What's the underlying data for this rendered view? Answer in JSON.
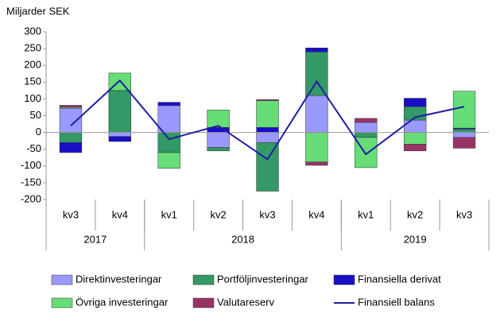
{
  "chart_data": {
    "type": "bar",
    "y_axis_label": "Miljarder SEK",
    "categories": [
      "kv3",
      "kv4",
      "kv1",
      "kv2",
      "kv3",
      "kv4",
      "kv1",
      "kv2",
      "kv3"
    ],
    "year_groups": [
      {
        "label": "2017",
        "span": 2
      },
      {
        "label": "2018",
        "span": 4
      },
      {
        "label": "2019",
        "span": 3
      }
    ],
    "series": [
      {
        "name": "Direktinvesteringar",
        "type": "bar",
        "color": "#9999ff",
        "values": [
          72,
          -12,
          80,
          -45,
          -30,
          110,
          30,
          37,
          -15
        ]
      },
      {
        "name": "Portföljinvesteringar",
        "type": "bar",
        "color": "#339966",
        "values": [
          -30,
          125,
          -60,
          -10,
          -145,
          130,
          -15,
          40,
          10
        ]
      },
      {
        "name": "Finansiella derivat",
        "type": "bar",
        "color": "#1a0fc8",
        "values": [
          -30,
          -15,
          10,
          15,
          15,
          12,
          0,
          25,
          3
        ]
      },
      {
        "name": "Övriga investeringar",
        "type": "bar",
        "color": "#66dd77",
        "values": [
          3,
          52,
          -47,
          52,
          80,
          -88,
          -90,
          -35,
          110
        ]
      },
      {
        "name": "Valutareserv",
        "type": "bar",
        "color": "#993366",
        "values": [
          6,
          0,
          0,
          0,
          3,
          -10,
          12,
          -20,
          -32
        ]
      },
      {
        "name": "Finansiell balans",
        "type": "line",
        "color": "#1f1f9f",
        "values": [
          20,
          155,
          -20,
          20,
          -80,
          152,
          -65,
          45,
          77
        ]
      }
    ],
    "ylim": [
      -200,
      300
    ],
    "yticks": [
      -200,
      -150,
      -100,
      -50,
      0,
      50,
      100,
      150,
      200,
      250,
      300
    ],
    "grid": false
  }
}
